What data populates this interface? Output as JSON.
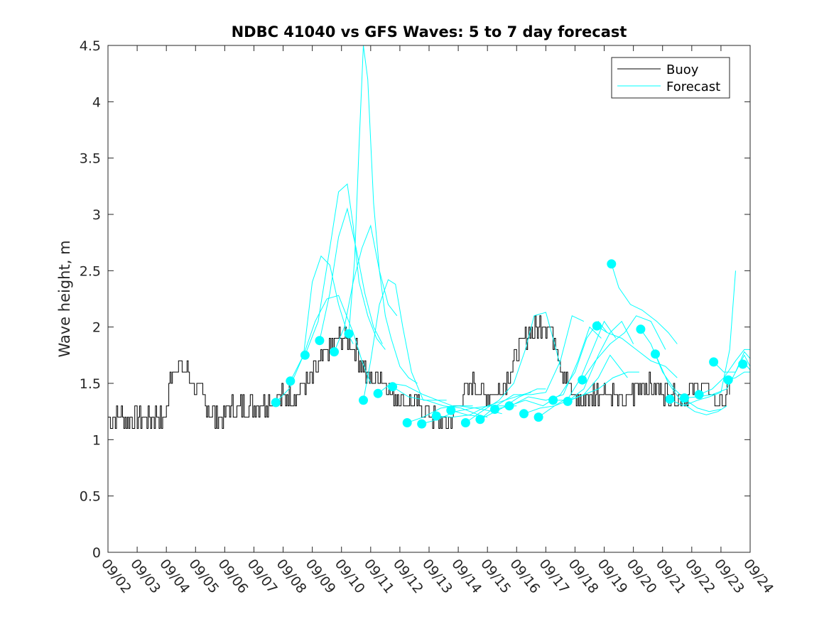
{
  "chart_data": {
    "type": "line",
    "title": "NDBC 41040 vs GFS Waves: 5 to 7 day forecast",
    "xlabel": "",
    "ylabel": "Wave height, m",
    "xlim": [
      0,
      22
    ],
    "ylim": [
      0,
      4.5
    ],
    "x_tick_values": [
      0,
      1,
      2,
      3,
      4,
      5,
      6,
      7,
      8,
      9,
      10,
      11,
      12,
      13,
      14,
      15,
      16,
      17,
      18,
      19,
      20,
      21,
      22
    ],
    "x_tick_labels": [
      "09/02",
      "09/03",
      "09/04",
      "09/05",
      "09/06",
      "09/07",
      "09/08",
      "09/09",
      "09/10",
      "09/11",
      "09/12",
      "09/13",
      "09/14",
      "09/15",
      "09/16",
      "09/17",
      "09/18",
      "09/19",
      "09/20",
      "09/21",
      "09/22",
      "09/23",
      "09/24"
    ],
    "y_tick_values": [
      0,
      0.5,
      1,
      1.5,
      2,
      2.5,
      3,
      3.5,
      4,
      4.5
    ],
    "y_tick_labels": [
      "0",
      "0.5",
      "1",
      "1.5",
      "2",
      "2.5",
      "3",
      "3.5",
      "4",
      "4.5"
    ],
    "legend": {
      "location": "top-right",
      "entries": [
        {
          "label": "Buoy",
          "color": "#000000"
        },
        {
          "label": "Forecast",
          "color": "#00ffff"
        }
      ]
    },
    "buoy": {
      "name": "Buoy",
      "color": "#000000",
      "noise": 0.1,
      "x": [
        0,
        0.3,
        0.5,
        0.8,
        1.0,
        1.3,
        1.6,
        1.9,
        2.05,
        2.15,
        2.3,
        2.5,
        2.7,
        2.9,
        3.1,
        3.3,
        3.5,
        3.7,
        3.9,
        4.2,
        4.5,
        4.8,
        5.1,
        5.4,
        5.7,
        6.0,
        6.3,
        6.6,
        6.9,
        7.1,
        7.3,
        7.5,
        7.7,
        7.9,
        8.1,
        8.3,
        8.5,
        8.7,
        8.9,
        9.1,
        9.3,
        9.5,
        9.7,
        9.9,
        10.1,
        10.3,
        10.5,
        10.7,
        10.9,
        11.1,
        11.3,
        11.5,
        11.7,
        11.9,
        12.1,
        12.3,
        12.5,
        12.7,
        12.9,
        13.1,
        13.3,
        13.5,
        13.7,
        13.9,
        14.1,
        14.3,
        14.5,
        14.7,
        14.9,
        15.1,
        15.3,
        15.5,
        15.7,
        15.9,
        16.1,
        16.3,
        16.5,
        16.7,
        16.9,
        17.1,
        17.3,
        17.5,
        17.7,
        17.9,
        18.1,
        18.3,
        18.5,
        18.7,
        18.9,
        19.1,
        19.3,
        19.5,
        19.7,
        19.9,
        20.1,
        20.3,
        20.5,
        20.7,
        20.9,
        21.1,
        21.3
      ],
      "values": [
        1.2,
        1.2,
        1.2,
        1.2,
        1.2,
        1.2,
        1.2,
        1.15,
        1.3,
        1.6,
        1.65,
        1.65,
        1.6,
        1.5,
        1.45,
        1.35,
        1.25,
        1.18,
        1.22,
        1.28,
        1.3,
        1.3,
        1.3,
        1.32,
        1.35,
        1.38,
        1.4,
        1.45,
        1.5,
        1.6,
        1.7,
        1.8,
        1.85,
        1.9,
        1.9,
        1.85,
        1.8,
        1.65,
        1.55,
        1.55,
        1.6,
        1.5,
        1.42,
        1.38,
        1.35,
        1.32,
        1.3,
        1.28,
        1.25,
        1.18,
        1.15,
        1.15,
        1.2,
        1.25,
        1.35,
        1.45,
        1.5,
        1.45,
        1.4,
        1.4,
        1.42,
        1.45,
        1.55,
        1.7,
        1.8,
        1.9,
        1.95,
        2.0,
        2.05,
        2.0,
        1.9,
        1.7,
        1.5,
        1.4,
        1.35,
        1.35,
        1.38,
        1.42,
        1.45,
        1.45,
        1.4,
        1.35,
        1.35,
        1.38,
        1.45,
        1.48,
        1.5,
        1.45,
        1.45,
        1.4,
        1.42,
        1.4,
        1.4,
        1.42,
        1.45,
        1.48,
        1.45,
        1.4,
        1.35,
        1.35,
        1.45
      ]
    },
    "forecast_series": [
      {
        "name": "Forecast 1",
        "x": [
          5.75,
          6.2,
          6.7,
          7.0,
          7.3,
          7.6,
          7.9,
          8.2,
          8.4
        ],
        "values": [
          1.33,
          1.45,
          1.75,
          2.4,
          2.63,
          2.55,
          2.2,
          1.95,
          1.85
        ]
      },
      {
        "name": "Forecast 2",
        "x": [
          6.25,
          6.7,
          7.1,
          7.5,
          7.9,
          8.1,
          8.4,
          8.7,
          9.0
        ],
        "values": [
          1.52,
          1.75,
          2.05,
          2.25,
          2.28,
          2.15,
          1.95,
          1.7,
          1.5
        ]
      },
      {
        "name": "Forecast 3",
        "x": [
          6.75,
          7.2,
          7.6,
          7.9,
          8.2,
          8.4,
          8.6,
          8.9,
          9.2,
          9.5
        ],
        "values": [
          1.75,
          2.05,
          2.7,
          3.2,
          3.27,
          2.9,
          2.4,
          2.1,
          1.9,
          1.8
        ]
      },
      {
        "name": "Forecast 4",
        "x": [
          7.25,
          7.6,
          7.9,
          8.2,
          8.5,
          8.8,
          9.1,
          9.4
        ],
        "values": [
          1.88,
          2.3,
          2.8,
          3.05,
          2.7,
          2.3,
          2.0,
          1.85
        ]
      },
      {
        "name": "Forecast 5",
        "x": [
          7.75,
          8.1,
          8.4,
          8.7,
          9.0,
          9.3,
          9.6,
          9.9
        ],
        "values": [
          1.78,
          2.0,
          2.4,
          2.7,
          2.9,
          2.5,
          2.2,
          2.1
        ]
      },
      {
        "name": "Forecast 6",
        "x": [
          8.25,
          8.45,
          8.6,
          8.75,
          8.9,
          9.1,
          9.3,
          9.5,
          9.7,
          10.0,
          10.3,
          10.6
        ],
        "values": [
          1.94,
          2.6,
          3.6,
          4.5,
          4.2,
          3.1,
          2.5,
          2.1,
          1.9,
          1.65,
          1.55,
          1.5
        ]
      },
      {
        "name": "Forecast 7",
        "x": [
          8.75,
          9.0,
          9.3,
          9.6,
          9.85,
          10.1,
          10.4,
          10.8,
          11.2,
          11.6
        ],
        "values": [
          1.35,
          1.7,
          2.2,
          2.42,
          2.38,
          2.0,
          1.6,
          1.35,
          1.35,
          1.35
        ]
      },
      {
        "name": "Forecast 8",
        "x": [
          9.25,
          9.7,
          10.2,
          10.8,
          11.3,
          11.8,
          12.2,
          12.5
        ],
        "values": [
          1.41,
          1.5,
          1.48,
          1.4,
          1.35,
          1.3,
          1.3,
          1.3
        ]
      },
      {
        "name": "Forecast 9",
        "x": [
          9.75,
          10.3,
          10.9,
          11.5,
          12.1,
          12.7,
          13.0
        ],
        "values": [
          1.47,
          1.38,
          1.35,
          1.3,
          1.28,
          1.22,
          1.2
        ]
      },
      {
        "name": "Forecast 10",
        "x": [
          10.25,
          10.8,
          11.4,
          12.0,
          12.6,
          13.2,
          13.5
        ],
        "values": [
          1.15,
          1.2,
          1.28,
          1.3,
          1.28,
          1.25,
          1.23
        ]
      },
      {
        "name": "Forecast 11",
        "x": [
          10.75,
          11.3,
          11.9,
          12.5,
          13.1,
          13.7,
          14.0
        ],
        "values": [
          1.14,
          1.18,
          1.25,
          1.28,
          1.3,
          1.3,
          1.3
        ]
      },
      {
        "name": "Forecast 12",
        "x": [
          11.25,
          11.8,
          12.4,
          13.0,
          13.6,
          14.2,
          14.5
        ],
        "values": [
          1.21,
          1.2,
          1.22,
          1.3,
          1.35,
          1.4,
          1.42
        ]
      },
      {
        "name": "Forecast 13",
        "x": [
          11.75,
          12.3,
          12.9,
          13.5,
          14.1,
          14.7,
          15.0
        ],
        "values": [
          1.26,
          1.22,
          1.2,
          1.28,
          1.38,
          1.45,
          1.45
        ]
      },
      {
        "name": "Forecast 14",
        "x": [
          12.25,
          12.8,
          13.4,
          13.9,
          14.3,
          14.6,
          15.0,
          15.3,
          15.5
        ],
        "values": [
          1.15,
          1.25,
          1.35,
          1.5,
          1.8,
          2.1,
          2.13,
          1.85,
          1.65
        ]
      },
      {
        "name": "Forecast 15",
        "x": [
          12.75,
          13.3,
          13.9,
          14.5,
          15.0,
          15.5,
          15.9,
          16.3
        ],
        "values": [
          1.18,
          1.3,
          1.4,
          1.4,
          1.42,
          1.7,
          2.1,
          2.05
        ]
      },
      {
        "name": "Forecast 16",
        "x": [
          13.25,
          13.8,
          14.4,
          15.0,
          15.6,
          16.1,
          16.5,
          16.9
        ],
        "values": [
          1.27,
          1.3,
          1.38,
          1.35,
          1.4,
          1.7,
          2.0,
          1.9
        ]
      },
      {
        "name": "Forecast 17",
        "x": [
          13.75,
          14.3,
          14.9,
          15.5,
          16.0,
          16.4,
          16.8,
          17.1
        ],
        "values": [
          1.3,
          1.35,
          1.3,
          1.4,
          1.6,
          1.9,
          2.05,
          1.95
        ]
      },
      {
        "name": "Forecast 18",
        "x": [
          14.25,
          14.8,
          15.3,
          15.8,
          16.2,
          16.6,
          17.0,
          17.4
        ],
        "values": [
          1.23,
          1.28,
          1.3,
          1.38,
          1.55,
          1.8,
          2.05,
          1.9
        ]
      },
      {
        "name": "Forecast 19",
        "x": [
          14.75,
          15.3,
          15.8,
          16.3,
          16.8,
          17.2,
          17.6,
          18.0
        ],
        "values": [
          1.2,
          1.3,
          1.35,
          1.45,
          1.75,
          1.95,
          2.05,
          1.85
        ]
      },
      {
        "name": "Forecast 20",
        "x": [
          15.25,
          15.8,
          16.3,
          16.8,
          17.2,
          17.5,
          17.8
        ],
        "values": [
          1.35,
          1.35,
          1.4,
          1.55,
          1.75,
          1.65,
          1.55
        ]
      },
      {
        "name": "Forecast 21",
        "x": [
          15.75,
          16.3,
          16.8,
          17.3,
          17.8,
          18.2
        ],
        "values": [
          1.34,
          1.4,
          1.45,
          1.55,
          1.6,
          1.6
        ]
      },
      {
        "name": "Forecast 22",
        "x": [
          16.25,
          16.7,
          17.2,
          17.7,
          18.1,
          18.6,
          19.1
        ],
        "values": [
          1.53,
          1.7,
          1.85,
          1.95,
          2.1,
          2.05,
          1.8
        ]
      },
      {
        "name": "Forecast 23",
        "x": [
          16.75,
          17.1,
          17.6,
          18.1,
          18.6,
          19.1,
          19.5
        ],
        "values": [
          2.01,
          1.95,
          1.9,
          1.8,
          1.7,
          1.65,
          1.55
        ]
      },
      {
        "name": "Forecast 24",
        "x": [
          17.25,
          17.5,
          17.9,
          18.3,
          18.8,
          19.2,
          19.5
        ],
        "values": [
          2.56,
          2.35,
          2.2,
          2.15,
          2.05,
          1.95,
          1.85
        ]
      },
      {
        "name": "Forecast 25",
        "x": [
          18.25,
          18.6,
          19.0,
          19.4,
          19.8,
          20.2,
          20.6,
          21.0
        ],
        "values": [
          1.98,
          1.85,
          1.6,
          1.45,
          1.35,
          1.28,
          1.25,
          1.27
        ]
      },
      {
        "name": "Forecast 26",
        "x": [
          18.75,
          19.2,
          19.7,
          20.1,
          20.5,
          20.9,
          21.2
        ],
        "values": [
          1.76,
          1.5,
          1.32,
          1.25,
          1.22,
          1.25,
          1.3
        ]
      },
      {
        "name": "Forecast 27",
        "x": [
          19.25,
          19.7,
          20.2,
          20.6,
          21.0,
          21.3,
          21.5
        ],
        "values": [
          1.36,
          1.3,
          1.35,
          1.38,
          1.42,
          1.8,
          2.5
        ]
      },
      {
        "name": "Forecast 28",
        "x": [
          19.75,
          20.2,
          20.7,
          21.2,
          21.5,
          21.8,
          22.0
        ],
        "values": [
          1.37,
          1.38,
          1.4,
          1.45,
          1.6,
          1.78,
          1.72
        ]
      },
      {
        "name": "Forecast 29",
        "x": [
          20.25,
          20.7,
          21.1,
          21.5,
          21.8,
          22.0
        ],
        "values": [
          1.4,
          1.45,
          1.55,
          1.7,
          1.8,
          1.8
        ]
      },
      {
        "name": "Forecast 30",
        "x": [
          20.75,
          21.1,
          21.5,
          21.8,
          22.0
        ],
        "values": [
          1.69,
          1.6,
          1.6,
          1.75,
          1.65
        ]
      },
      {
        "name": "Forecast 31",
        "x": [
          21.25,
          21.5,
          21.8,
          22.0
        ],
        "values": [
          1.53,
          1.55,
          1.6,
          1.6
        ]
      },
      {
        "name": "Forecast 32",
        "x": [
          21.75,
          21.9,
          22.0
        ],
        "values": [
          1.67,
          1.65,
          1.62
        ]
      }
    ]
  }
}
